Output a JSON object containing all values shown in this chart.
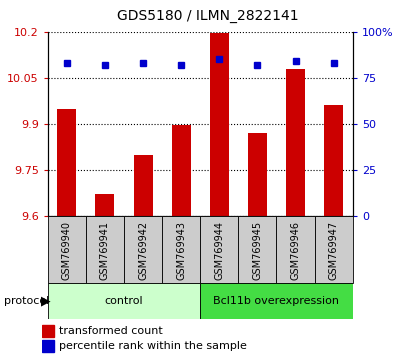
{
  "title": "GDS5180 / ILMN_2822141",
  "categories": [
    "GSM769940",
    "GSM769941",
    "GSM769942",
    "GSM769943",
    "GSM769944",
    "GSM769945",
    "GSM769946",
    "GSM769947"
  ],
  "bar_values": [
    9.95,
    9.67,
    9.8,
    9.895,
    10.195,
    9.87,
    10.08,
    9.96
  ],
  "percentile_values": [
    83,
    82,
    83,
    82,
    85,
    82,
    84,
    83
  ],
  "ylim_left": [
    9.6,
    10.2
  ],
  "ylim_right": [
    0,
    100
  ],
  "yticks_left": [
    9.6,
    9.75,
    9.9,
    10.05,
    10.2
  ],
  "ytick_labels_left": [
    "9.6",
    "9.75",
    "9.9",
    "10.05",
    "10.2"
  ],
  "yticks_right": [
    0,
    25,
    50,
    75,
    100
  ],
  "ytick_labels_right": [
    "0",
    "25",
    "50",
    "75",
    "100%"
  ],
  "bar_color": "#CC0000",
  "dot_color": "#0000CC",
  "control_label": "control",
  "overexpression_label": "Bcl11b overexpression",
  "protocol_label": "protocol",
  "legend_bar_label": "transformed count",
  "legend_dot_label": "percentile rank within the sample",
  "control_color": "#ccffcc",
  "overexpression_color": "#44dd44",
  "xlabel_area_color": "#cccccc",
  "n_control": 4,
  "n_over": 4
}
